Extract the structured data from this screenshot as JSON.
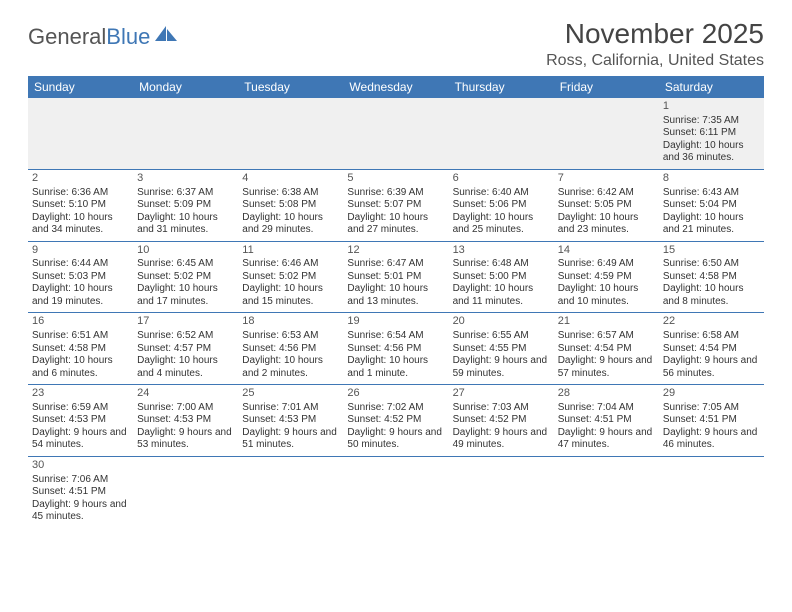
{
  "logo": {
    "word1": "General",
    "word2": "Blue"
  },
  "title": "November 2025",
  "location": "Ross, California, United States",
  "colors": {
    "header_bg": "#3f77b5",
    "header_text": "#ffffff",
    "rule": "#3f77b5",
    "body_text": "#333333",
    "title_text": "#444444",
    "first_row_bg": "#f0f0f0"
  },
  "weekdays": [
    "Sunday",
    "Monday",
    "Tuesday",
    "Wednesday",
    "Thursday",
    "Friday",
    "Saturday"
  ],
  "weeks": [
    [
      null,
      null,
      null,
      null,
      null,
      null,
      {
        "n": "1",
        "sr": "Sunrise: 7:35 AM",
        "ss": "Sunset: 6:11 PM",
        "dl": "Daylight: 10 hours and 36 minutes."
      }
    ],
    [
      {
        "n": "2",
        "sr": "Sunrise: 6:36 AM",
        "ss": "Sunset: 5:10 PM",
        "dl": "Daylight: 10 hours and 34 minutes."
      },
      {
        "n": "3",
        "sr": "Sunrise: 6:37 AM",
        "ss": "Sunset: 5:09 PM",
        "dl": "Daylight: 10 hours and 31 minutes."
      },
      {
        "n": "4",
        "sr": "Sunrise: 6:38 AM",
        "ss": "Sunset: 5:08 PM",
        "dl": "Daylight: 10 hours and 29 minutes."
      },
      {
        "n": "5",
        "sr": "Sunrise: 6:39 AM",
        "ss": "Sunset: 5:07 PM",
        "dl": "Daylight: 10 hours and 27 minutes."
      },
      {
        "n": "6",
        "sr": "Sunrise: 6:40 AM",
        "ss": "Sunset: 5:06 PM",
        "dl": "Daylight: 10 hours and 25 minutes."
      },
      {
        "n": "7",
        "sr": "Sunrise: 6:42 AM",
        "ss": "Sunset: 5:05 PM",
        "dl": "Daylight: 10 hours and 23 minutes."
      },
      {
        "n": "8",
        "sr": "Sunrise: 6:43 AM",
        "ss": "Sunset: 5:04 PM",
        "dl": "Daylight: 10 hours and 21 minutes."
      }
    ],
    [
      {
        "n": "9",
        "sr": "Sunrise: 6:44 AM",
        "ss": "Sunset: 5:03 PM",
        "dl": "Daylight: 10 hours and 19 minutes."
      },
      {
        "n": "10",
        "sr": "Sunrise: 6:45 AM",
        "ss": "Sunset: 5:02 PM",
        "dl": "Daylight: 10 hours and 17 minutes."
      },
      {
        "n": "11",
        "sr": "Sunrise: 6:46 AM",
        "ss": "Sunset: 5:02 PM",
        "dl": "Daylight: 10 hours and 15 minutes."
      },
      {
        "n": "12",
        "sr": "Sunrise: 6:47 AM",
        "ss": "Sunset: 5:01 PM",
        "dl": "Daylight: 10 hours and 13 minutes."
      },
      {
        "n": "13",
        "sr": "Sunrise: 6:48 AM",
        "ss": "Sunset: 5:00 PM",
        "dl": "Daylight: 10 hours and 11 minutes."
      },
      {
        "n": "14",
        "sr": "Sunrise: 6:49 AM",
        "ss": "Sunset: 4:59 PM",
        "dl": "Daylight: 10 hours and 10 minutes."
      },
      {
        "n": "15",
        "sr": "Sunrise: 6:50 AM",
        "ss": "Sunset: 4:58 PM",
        "dl": "Daylight: 10 hours and 8 minutes."
      }
    ],
    [
      {
        "n": "16",
        "sr": "Sunrise: 6:51 AM",
        "ss": "Sunset: 4:58 PM",
        "dl": "Daylight: 10 hours and 6 minutes."
      },
      {
        "n": "17",
        "sr": "Sunrise: 6:52 AM",
        "ss": "Sunset: 4:57 PM",
        "dl": "Daylight: 10 hours and 4 minutes."
      },
      {
        "n": "18",
        "sr": "Sunrise: 6:53 AM",
        "ss": "Sunset: 4:56 PM",
        "dl": "Daylight: 10 hours and 2 minutes."
      },
      {
        "n": "19",
        "sr": "Sunrise: 6:54 AM",
        "ss": "Sunset: 4:56 PM",
        "dl": "Daylight: 10 hours and 1 minute."
      },
      {
        "n": "20",
        "sr": "Sunrise: 6:55 AM",
        "ss": "Sunset: 4:55 PM",
        "dl": "Daylight: 9 hours and 59 minutes."
      },
      {
        "n": "21",
        "sr": "Sunrise: 6:57 AM",
        "ss": "Sunset: 4:54 PM",
        "dl": "Daylight: 9 hours and 57 minutes."
      },
      {
        "n": "22",
        "sr": "Sunrise: 6:58 AM",
        "ss": "Sunset: 4:54 PM",
        "dl": "Daylight: 9 hours and 56 minutes."
      }
    ],
    [
      {
        "n": "23",
        "sr": "Sunrise: 6:59 AM",
        "ss": "Sunset: 4:53 PM",
        "dl": "Daylight: 9 hours and 54 minutes."
      },
      {
        "n": "24",
        "sr": "Sunrise: 7:00 AM",
        "ss": "Sunset: 4:53 PM",
        "dl": "Daylight: 9 hours and 53 minutes."
      },
      {
        "n": "25",
        "sr": "Sunrise: 7:01 AM",
        "ss": "Sunset: 4:53 PM",
        "dl": "Daylight: 9 hours and 51 minutes."
      },
      {
        "n": "26",
        "sr": "Sunrise: 7:02 AM",
        "ss": "Sunset: 4:52 PM",
        "dl": "Daylight: 9 hours and 50 minutes."
      },
      {
        "n": "27",
        "sr": "Sunrise: 7:03 AM",
        "ss": "Sunset: 4:52 PM",
        "dl": "Daylight: 9 hours and 49 minutes."
      },
      {
        "n": "28",
        "sr": "Sunrise: 7:04 AM",
        "ss": "Sunset: 4:51 PM",
        "dl": "Daylight: 9 hours and 47 minutes."
      },
      {
        "n": "29",
        "sr": "Sunrise: 7:05 AM",
        "ss": "Sunset: 4:51 PM",
        "dl": "Daylight: 9 hours and 46 minutes."
      }
    ],
    [
      {
        "n": "30",
        "sr": "Sunrise: 7:06 AM",
        "ss": "Sunset: 4:51 PM",
        "dl": "Daylight: 9 hours and 45 minutes."
      },
      null,
      null,
      null,
      null,
      null,
      null
    ]
  ]
}
